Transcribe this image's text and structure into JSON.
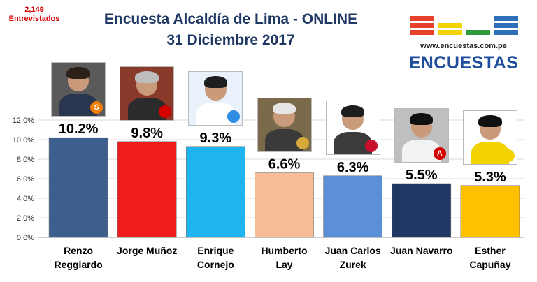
{
  "header": {
    "sample_count": "2,149",
    "sample_label": "Entrevistados",
    "title_line1": "Encuesta Alcaldía de Lima - ONLINE",
    "title_line2": "31 Diciembre 2017"
  },
  "logo": {
    "url": "www.encuestas.com.pe",
    "wordmark": "ENCUESTAS",
    "colors": [
      "#e8412b",
      "#f2d200",
      "#2e9a3c",
      "#2f6fb7"
    ]
  },
  "candidates": [
    {
      "icon": "candidate-photo-icon",
      "bg": "#5a5a5a",
      "hair": "#2b2018",
      "suit": "#2a3550",
      "badge_text": "S",
      "badge_color": "#f07c00"
    },
    {
      "icon": "candidate-photo-icon",
      "bg": "#8a3a2a",
      "hair": "#bdbdbd",
      "suit": "#2b2b2b",
      "badge_text": "",
      "badge_color": "#d40000"
    },
    {
      "icon": "candidate-photo-icon",
      "bg": "#e9f2fb",
      "hair": "#1e1e1e",
      "suit": "#ffffff",
      "badge_text": "",
      "badge_color": "#2f8de4"
    },
    {
      "icon": "candidate-photo-icon",
      "bg": "#7a6a4a",
      "hair": "#e6e6e6",
      "suit": "#3a3a3a",
      "badge_text": "",
      "badge_color": "#d7a93a"
    },
    {
      "icon": "candidate-photo-icon",
      "bg": "#ffffff",
      "hair": "#1e1e1e",
      "suit": "#3b3b3b",
      "badge_text": "",
      "badge_color": "#c8102e"
    },
    {
      "icon": "candidate-photo-icon",
      "bg": "#bfbfbf",
      "hair": "#111111",
      "suit": "#f2f2f2",
      "badge_text": "A",
      "badge_color": "#d40000"
    },
    {
      "icon": "candidate-photo-icon",
      "bg": "#ffffff",
      "hair": "#111111",
      "suit": "#f2d200",
      "badge_text": "",
      "badge_color": "#f2d200"
    }
  ],
  "chart_data": {
    "type": "bar",
    "title": "Encuesta Alcaldía de Lima - ONLINE",
    "subtitle": "31 Diciembre 2017",
    "categories": [
      [
        "Renzo",
        "Reggiardo"
      ],
      [
        "Jorge Muñoz"
      ],
      [
        "Enrique",
        "Cornejo"
      ],
      [
        "Humberto",
        "Lay"
      ],
      [
        "Juan Carlos",
        "Zurek"
      ],
      [
        "Juan Navarro"
      ],
      [
        "Esther",
        "Capuñay"
      ]
    ],
    "values": [
      10.2,
      9.8,
      9.3,
      6.6,
      6.3,
      5.5,
      5.3
    ],
    "value_labels": [
      "10.2%",
      "9.8%",
      "9.3%",
      "6.6%",
      "6.3%",
      "5.5%",
      "5.3%"
    ],
    "bar_colors": [
      "#3c5f8e",
      "#ee1c1c",
      "#1fb4f0",
      "#f7be96",
      "#5b8fd8",
      "#1f3864",
      "#ffc000"
    ],
    "ylim": [
      0,
      12
    ],
    "yticks": [
      0,
      2,
      4,
      6,
      8,
      10,
      12
    ],
    "ytick_labels": [
      "0.0%",
      "2.0%",
      "4.0%",
      "6.0%",
      "8.0%",
      "10.0%",
      "12.0%"
    ],
    "grid": true,
    "legend": "none"
  }
}
